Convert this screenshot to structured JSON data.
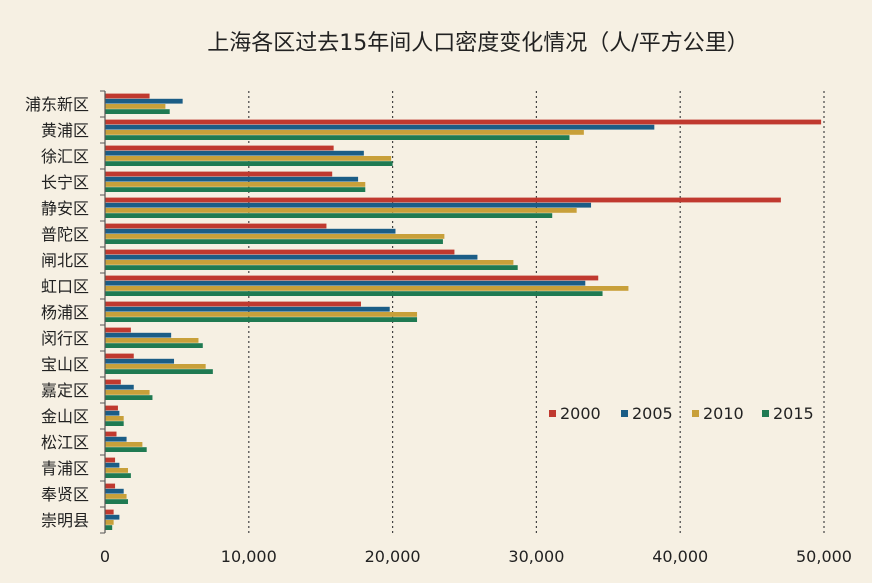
{
  "chart_data": {
    "type": "bar",
    "orientation": "horizontal",
    "title": "上海各区过去15年间人口密度变化情况（人/平方公里）",
    "xlabel": "",
    "ylabel": "",
    "xlim": [
      0,
      50000
    ],
    "xticks": [
      0,
      10000,
      20000,
      30000,
      40000,
      50000
    ],
    "xtick_labels": [
      "0",
      "10,000",
      "20,000",
      "30,000",
      "40,000",
      "50,000"
    ],
    "grid": "vertical dotted",
    "legend_position": "right",
    "categories": [
      "浦东新区",
      "黄浦区",
      "徐汇区",
      "长宁区",
      "静安区",
      "普陀区",
      "闸北区",
      "虹口区",
      "杨浦区",
      "闵行区",
      "宝山区",
      "嘉定区",
      "金山区",
      "松江区",
      "青浦区",
      "奉贤区",
      "崇明县"
    ],
    "series": [
      {
        "name": "2000",
        "color": "#c0392f",
        "values": [
          3100,
          49800,
          15900,
          15800,
          47000,
          15400,
          24300,
          34300,
          17800,
          1800,
          2000,
          1100,
          900,
          800,
          700,
          700,
          600
        ]
      },
      {
        "name": "2005",
        "color": "#1b5d86",
        "values": [
          5400,
          38200,
          18000,
          17600,
          33800,
          20200,
          25900,
          33400,
          19800,
          4600,
          4800,
          2000,
          1000,
          1500,
          1000,
          1300,
          1000
        ]
      },
      {
        "name": "2010",
        "color": "#c8a03a",
        "values": [
          4200,
          33300,
          19900,
          18100,
          32800,
          23600,
          28400,
          36400,
          21700,
          6500,
          7000,
          3100,
          1300,
          2600,
          1600,
          1500,
          600
        ]
      },
      {
        "name": "2015",
        "color": "#1f7a52",
        "values": [
          4500,
          32300,
          20000,
          18100,
          31100,
          23500,
          28700,
          34600,
          21700,
          6800,
          7500,
          3300,
          1300,
          2900,
          1800,
          1600,
          500
        ]
      }
    ]
  }
}
